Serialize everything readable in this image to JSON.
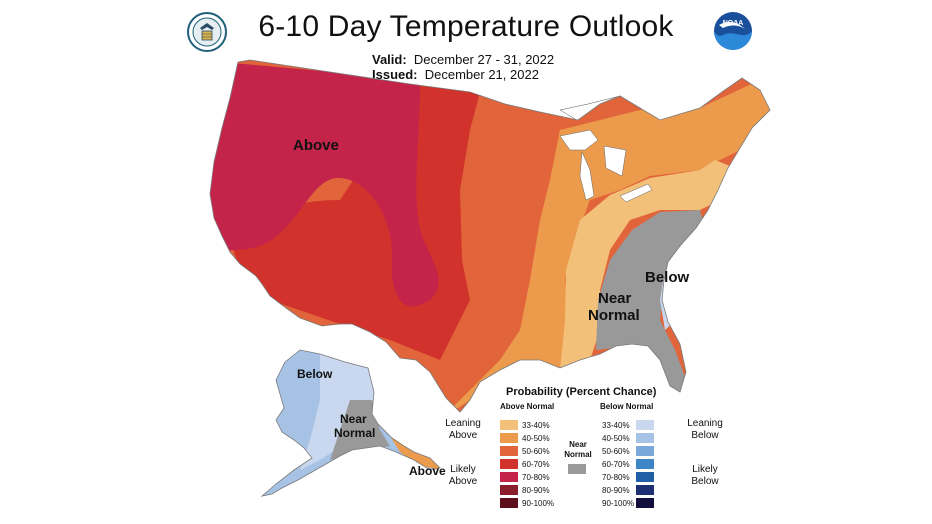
{
  "title": "6-10 Day Temperature Outlook",
  "valid_label": "Valid:",
  "valid_value": "December 27 - 31, 2022",
  "issued_label": "Issued:",
  "issued_value": "December 21, 2022",
  "logos": {
    "left": "doc-seal-logo",
    "right": "noaa-logo"
  },
  "map_labels": {
    "above_west": "Above",
    "near_normal_1": "Near",
    "near_normal_2": "Normal",
    "below_se": "Below",
    "ak_below": "Below",
    "ak_near_1": "Near",
    "ak_near_2": "Normal",
    "ak_above": "Above"
  },
  "legend": {
    "title": "Probability (Percent Chance)",
    "above_header": "Above Normal",
    "below_header": "Below Normal",
    "near_header_1": "Near",
    "near_header_2": "Normal",
    "leaning_above_1": "Leaning",
    "leaning_above_2": "Above",
    "likely_above_1": "Likely",
    "likely_above_2": "Above",
    "leaning_below_1": "Leaning",
    "leaning_below_2": "Below",
    "likely_below_1": "Likely",
    "likely_below_2": "Below",
    "above_levels": [
      {
        "label": "33-40%",
        "color": "#f2c079"
      },
      {
        "label": "40-50%",
        "color": "#ec9a4c"
      },
      {
        "label": "50-60%",
        "color": "#e2643a"
      },
      {
        "label": "60-70%",
        "color": "#d1322b"
      },
      {
        "label": "70-80%",
        "color": "#c5244a"
      },
      {
        "label": "80-90%",
        "color": "#8b1e2c"
      },
      {
        "label": "90-100%",
        "color": "#5e0f1c"
      }
    ],
    "below_levels": [
      {
        "label": "33-40%",
        "color": "#c9d8ee"
      },
      {
        "label": "40-50%",
        "color": "#a6c3e6"
      },
      {
        "label": "50-60%",
        "color": "#7ba8da"
      },
      {
        "label": "60-70%",
        "color": "#3f86c8"
      },
      {
        "label": "70-80%",
        "color": "#205ea6"
      },
      {
        "label": "80-90%",
        "color": "#1b2f72"
      },
      {
        "label": "90-100%",
        "color": "#120f3c"
      }
    ],
    "near_color": "#999999"
  }
}
